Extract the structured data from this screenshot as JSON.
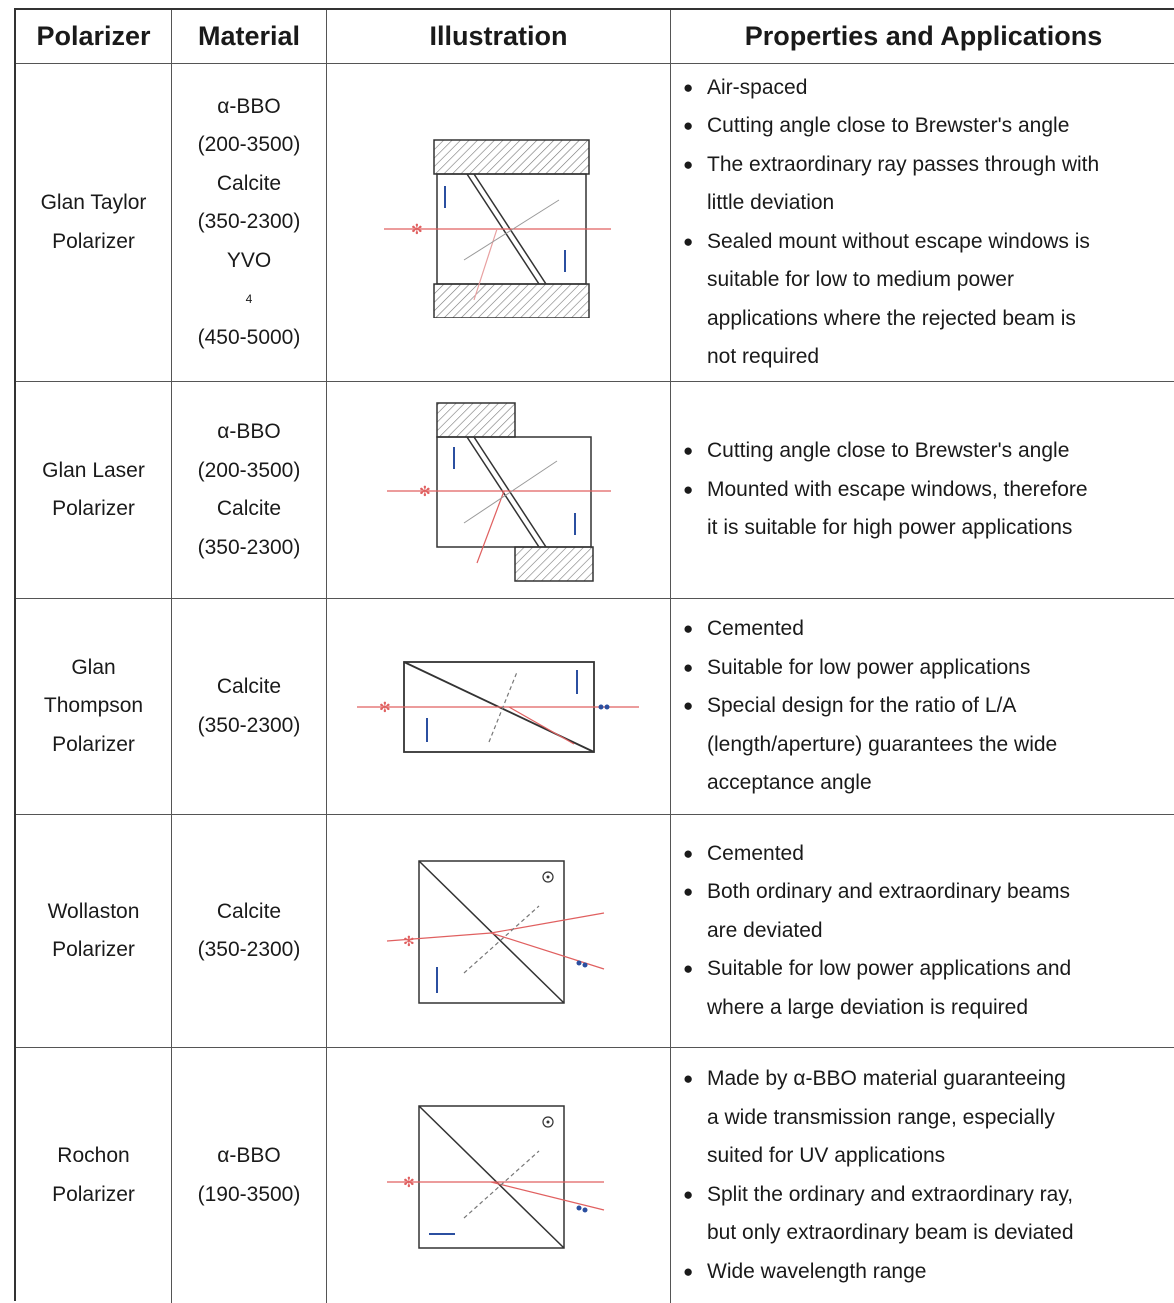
{
  "header": {
    "polarizer": "Polarizer",
    "material": "Material",
    "illustration": "Illustration",
    "properties": "Properties and Applications"
  },
  "rows": [
    {
      "name": [
        "Glan Taylor",
        "Polarizer"
      ],
      "material": [
        "α-BBO",
        "(200-3500)",
        "Calcite",
        "(350-2300)",
        "YVO",
        "(450-5000)"
      ],
      "material_subscript": "4",
      "properties": [
        [
          "Air-spaced"
        ],
        [
          "Cutting angle close to Brewster's angle"
        ],
        [
          "The extraordinary ray passes through with",
          "little deviation"
        ],
        [
          "Sealed mount without escape windows is",
          "suitable for low to medium power",
          "applications where the rejected beam is",
          "not required"
        ]
      ]
    },
    {
      "name": [
        "Glan Laser",
        "Polarizer"
      ],
      "material": [
        "α-BBO",
        "(200-3500)",
        "Calcite",
        "(350-2300)"
      ],
      "properties": [
        [
          "Cutting angle close to Brewster's angle"
        ],
        [
          "Mounted with escape windows, therefore",
          "it is suitable for high power applications"
        ]
      ]
    },
    {
      "name": [
        "Glan",
        "Thompson",
        "Polarizer"
      ],
      "material": [
        "Calcite",
        "(350-2300)"
      ],
      "properties": [
        [
          "Cemented"
        ],
        [
          "Suitable for low power applications"
        ],
        [
          "Special design for the ratio of L/A",
          "(length/aperture) guarantees the wide",
          "acceptance angle"
        ]
      ]
    },
    {
      "name": [
        "Wollaston",
        "Polarizer"
      ],
      "material": [
        "Calcite",
        "(350-2300)"
      ],
      "properties": [
        [
          "Cemented"
        ],
        [
          "Both ordinary and extraordinary beams",
          "are deviated"
        ],
        [
          "Suitable for low power applications and",
          "where a large deviation is required"
        ]
      ]
    },
    {
      "name": [
        "Rochon",
        "Polarizer"
      ],
      "material": [
        "α-BBO",
        "(190-3500)"
      ],
      "properties": [
        [
          "Made by α-BBO material guaranteeing",
          "a wide transmission range, especially",
          "suited for UV applications"
        ],
        [
          "Split the ordinary and extraordinary ray,",
          "but only extraordinary beam is deviated"
        ],
        [
          "Wide wavelength range"
        ]
      ]
    }
  ],
  "colors": {
    "ray": "#e06060",
    "arrow": "#2b4fa0",
    "outline": "#333333",
    "hatch": "#777777"
  }
}
